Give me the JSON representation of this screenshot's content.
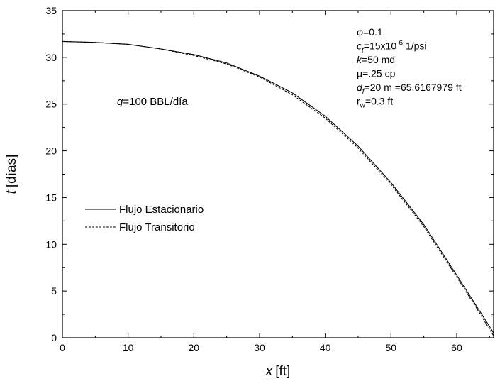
{
  "chart_data": {
    "type": "line",
    "xlabel": {
      "var": "x",
      "unit": "[ft]"
    },
    "ylabel": {
      "var": "t",
      "unit": "[días]"
    },
    "xlim": [
      0,
      65.6167979
    ],
    "ylim": [
      0,
      35
    ],
    "x_ticks": [
      0,
      10,
      20,
      30,
      40,
      50,
      60
    ],
    "y_ticks": [
      0,
      5,
      10,
      15,
      20,
      25,
      30,
      35
    ],
    "grid": false,
    "legend_position": "left",
    "annotation": {
      "var": "q",
      "text": "=100 BBL/día"
    },
    "params": [
      {
        "pre": "",
        "sym": "φ",
        "sub": "",
        "sup": "",
        "post": "=0.1"
      },
      {
        "pre": "",
        "sym": "c",
        "sub": "t",
        "mid": "=15x10",
        "sup": "-6",
        "post": " 1/psi"
      },
      {
        "pre": "",
        "sym": "k",
        "sub": "",
        "sup": "",
        "post": "=50 md"
      },
      {
        "pre": "",
        "sym": "μ",
        "sub": "",
        "sup": "",
        "post": "=.25 cp"
      },
      {
        "pre": "",
        "sym": "d",
        "sub": "f",
        "sup": "",
        "post": "=20 m =65.6167979 ft"
      },
      {
        "pre": "",
        "sym": "r",
        "sub": "w",
        "sup": "",
        "post": "=0.3 ft"
      }
    ],
    "series": [
      {
        "name": "Flujo Estacionario",
        "style": "solid",
        "x": [
          0,
          5,
          10,
          15,
          20,
          25,
          30,
          35,
          40,
          45,
          50,
          55,
          60,
          63,
          65,
          65.6167979
        ],
        "y": [
          31.7,
          31.6,
          31.4,
          30.9,
          30.3,
          29.4,
          28.0,
          26.2,
          23.7,
          20.5,
          16.6,
          12.1,
          6.7,
          3.4,
          1.2,
          0.5
        ]
      },
      {
        "name": "Flujo Transitorio",
        "style": "dashed",
        "x": [
          0,
          5,
          10,
          15,
          20,
          25,
          30,
          35,
          40,
          45,
          50,
          55,
          60,
          63,
          65,
          65.6167979
        ],
        "y": [
          31.7,
          31.6,
          31.4,
          30.9,
          30.2,
          29.3,
          27.9,
          26.0,
          23.5,
          20.3,
          16.4,
          11.9,
          6.5,
          3.2,
          0.9,
          0.2
        ]
      }
    ]
  }
}
